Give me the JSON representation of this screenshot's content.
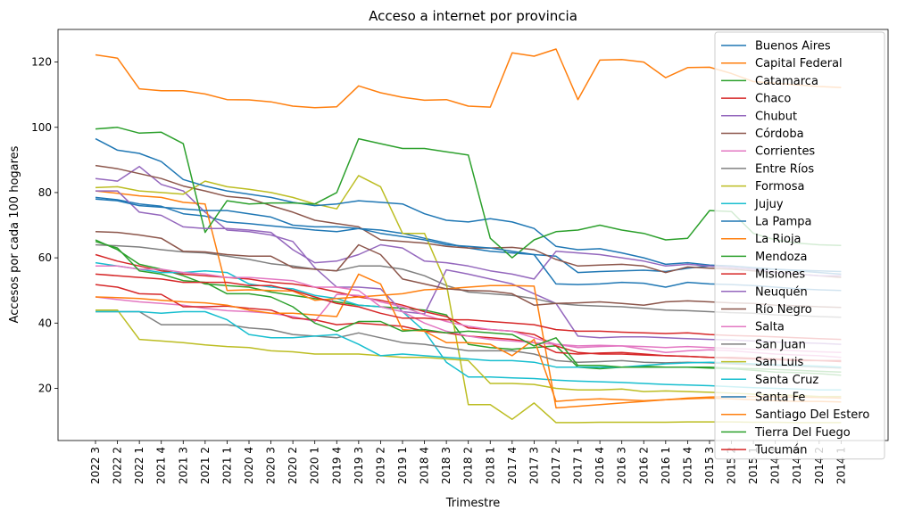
{
  "chart_data": {
    "type": "line",
    "title": "Acceso a internet por provincia",
    "xlabel": "Trimestre",
    "ylabel": "Accesos por cada 100 hogares",
    "ylim": [
      4,
      130
    ],
    "yticks": [
      20,
      40,
      60,
      80,
      100,
      120
    ],
    "grid": false,
    "legend_position": "top-right",
    "x": [
      "2022 3",
      "2022 2",
      "2022 1",
      "2021 4",
      "2021 3",
      "2021 2",
      "2021 1",
      "2020 4",
      "2020 3",
      "2020 2",
      "2020 1",
      "2019 4",
      "2019 3",
      "2019 2",
      "2019 1",
      "2018 4",
      "2018 3",
      "2018 2",
      "2018 1",
      "2017 4",
      "2017 3",
      "2017 2",
      "2017 1",
      "2016 4",
      "2016 3",
      "2016 2",
      "2016 1",
      "2015 4",
      "2015 3",
      "2015 2",
      "2015 1",
      "2014 4",
      "2014 3",
      "2014 2",
      "2014 1"
    ],
    "series": [
      {
        "name": "Buenos Aires",
        "color": "#1f77b4",
        "values": [
          78.5,
          77.8,
          76.5,
          75.8,
          73.5,
          72.8,
          71.0,
          70.5,
          69.8,
          69.2,
          68.5,
          68.0,
          69.0,
          68.5,
          67.5,
          66.0,
          64.5,
          63.0,
          62.0,
          61.5,
          61.0,
          60.5,
          55.5,
          55.8,
          56.0,
          56.2,
          55.8,
          56.8,
          57.5,
          57.0,
          56.5,
          56.5,
          56.2,
          56.0,
          55.8
        ]
      },
      {
        "name": "Capital Federal",
        "color": "#ff7f0e",
        "values": [
          122.2,
          121.2,
          111.8,
          111.2,
          111.2,
          110.2,
          108.5,
          108.4,
          107.8,
          106.5,
          106.0,
          106.3,
          112.7,
          110.6,
          109.2,
          108.3,
          108.5,
          106.5,
          106.2,
          122.8,
          121.8,
          124.0,
          108.5,
          120.6,
          120.8,
          120.0,
          115.2,
          118.3,
          118.4,
          116.5,
          114.0,
          113.5,
          113.0,
          112.5,
          112.2
        ]
      },
      {
        "name": "Catamarca",
        "color": "#2ca02c",
        "values": [
          65.5,
          62.5,
          58.0,
          56.5,
          54.5,
          52.0,
          51.5,
          51.0,
          49.5,
          48.5,
          47.5,
          46.5,
          45.5,
          45.0,
          44.5,
          44.0,
          42.5,
          33.5,
          32.5,
          32.0,
          32.5,
          33.0,
          26.5,
          26.0,
          26.5,
          26.8,
          26.5,
          26.5,
          26.2,
          26.0,
          25.5,
          25.0,
          24.8,
          24.5,
          24.0
        ]
      },
      {
        "name": "Chaco",
        "color": "#d62728",
        "values": [
          61.0,
          59.0,
          57.5,
          56.0,
          55.0,
          54.5,
          54.0,
          53.5,
          52.5,
          52.0,
          51.0,
          49.5,
          48.0,
          47.0,
          45.5,
          43.5,
          42.0,
          38.5,
          38.0,
          37.5,
          36.5,
          33.0,
          31.0,
          30.5,
          30.5,
          30.2,
          30.0,
          29.8,
          29.5,
          29.5,
          29.2,
          29.0,
          28.8,
          28.5,
          28.5
        ]
      },
      {
        "name": "Chubut",
        "color": "#9467bd",
        "values": [
          84.3,
          83.5,
          88.0,
          82.5,
          80.5,
          74.0,
          68.5,
          68.0,
          67.0,
          65.0,
          57.0,
          51.0,
          51.0,
          50.5,
          43.5,
          42.8,
          56.3,
          55.0,
          53.5,
          52.0,
          49.0,
          46.0,
          36.0,
          35.5,
          35.8,
          35.8,
          35.5,
          35.2,
          35.0,
          34.8,
          34.5,
          34.2,
          34.0,
          33.8,
          33.5
        ]
      },
      {
        "name": "Córdoba",
        "color": "#8c564b",
        "values": [
          88.3,
          87.3,
          85.8,
          84.3,
          82.0,
          80.5,
          78.8,
          78.2,
          76.0,
          74.0,
          71.5,
          70.5,
          69.5,
          65.5,
          65.0,
          64.5,
          63.5,
          63.0,
          63.0,
          63.2,
          62.5,
          59.5,
          57.5,
          57.8,
          58.0,
          57.5,
          55.5,
          57.2,
          56.8,
          56.5,
          56.0,
          55.5,
          55.0,
          54.5,
          54.0
        ]
      },
      {
        "name": "Corrientes",
        "color": "#e377c2",
        "values": [
          48.0,
          47.2,
          46.5,
          46.0,
          45.5,
          44.5,
          43.8,
          43.5,
          43.0,
          42.0,
          40.5,
          48.8,
          48.5,
          46.5,
          45.0,
          42.5,
          40.5,
          39.0,
          38.0,
          37.5,
          35.5,
          33.5,
          32.5,
          32.8,
          33.0,
          32.0,
          31.0,
          31.5,
          31.8,
          31.5,
          31.0,
          30.5,
          30.2,
          30.0,
          29.5
        ]
      },
      {
        "name": "Entre Ríos",
        "color": "#7f7f7f",
        "values": [
          64.0,
          63.7,
          63.3,
          62.5,
          61.8,
          61.5,
          60.5,
          59.5,
          58.2,
          57.5,
          56.5,
          56.0,
          57.5,
          57.5,
          56.5,
          54.5,
          51.5,
          49.5,
          49.0,
          48.5,
          47.5,
          46.0,
          45.5,
          45.2,
          45.0,
          44.5,
          44.0,
          43.8,
          43.5,
          43.2,
          43.0,
          42.5,
          42.3,
          42.0,
          41.8
        ]
      },
      {
        "name": "Formosa",
        "color": "#bcbd22",
        "values": [
          81.5,
          81.8,
          80.5,
          80.0,
          79.5,
          83.5,
          81.8,
          81.0,
          80.0,
          78.5,
          76.5,
          75.0,
          85.2,
          81.8,
          67.5,
          67.5,
          52.0,
          15.0,
          15.0,
          10.5,
          15.5,
          9.5,
          9.5,
          9.6,
          9.6,
          9.6,
          9.6,
          9.7,
          9.7,
          9.7,
          9.6,
          9.6,
          9.5,
          9.5,
          9.5
        ]
      },
      {
        "name": "Jujuy",
        "color": "#17becf",
        "values": [
          58.5,
          57.5,
          56.5,
          55.5,
          55.5,
          56.0,
          55.5,
          52.0,
          51.0,
          50.5,
          48.5,
          47.5,
          45.5,
          45.0,
          43.5,
          37.5,
          28.0,
          23.5,
          23.5,
          23.2,
          23.0,
          22.5,
          22.2,
          22.0,
          21.8,
          21.5,
          21.2,
          21.0,
          20.8,
          20.5,
          20.2,
          20.0,
          19.8,
          19.5,
          19.5
        ]
      },
      {
        "name": "La Pampa",
        "color": "#1f77b4",
        "values": [
          96.5,
          93.0,
          92.0,
          89.5,
          84.0,
          82.0,
          80.5,
          79.5,
          78.5,
          77.0,
          76.0,
          76.5,
          77.5,
          77.0,
          76.5,
          73.5,
          71.5,
          71.0,
          72.0,
          71.0,
          69.0,
          63.5,
          62.5,
          62.8,
          61.5,
          60.0,
          58.0,
          58.5,
          57.8,
          57.5,
          57.0,
          56.5,
          56.0,
          55.5,
          55.0
        ]
      },
      {
        "name": "La Rioja",
        "color": "#ff7f0e",
        "values": [
          80.5,
          79.8,
          79.0,
          78.5,
          77.0,
          76.5,
          50.0,
          50.2,
          50.0,
          49.8,
          47.0,
          47.5,
          48.0,
          48.5,
          49.0,
          50.2,
          50.5,
          51.0,
          51.5,
          51.5,
          51.3,
          14.0,
          14.5,
          15.0,
          15.5,
          16.0,
          16.5,
          17.0,
          17.3,
          17.5,
          17.5,
          17.4,
          17.3,
          17.2,
          17.0
        ]
      },
      {
        "name": "Mendoza",
        "color": "#2ca02c",
        "values": [
          99.5,
          100.0,
          98.2,
          98.5,
          95.0,
          67.8,
          77.5,
          76.5,
          76.8,
          76.8,
          76.5,
          80.0,
          96.5,
          95.0,
          93.5,
          93.5,
          92.5,
          91.5,
          66.0,
          60.0,
          65.5,
          68.0,
          68.5,
          70.0,
          68.5,
          67.5,
          65.5,
          66.0,
          74.5,
          74.2,
          67.5,
          65.5,
          64.5,
          64.0,
          63.8
        ]
      },
      {
        "name": "Misiones",
        "color": "#d62728",
        "values": [
          51.8,
          51.0,
          49.0,
          48.8,
          45.0,
          45.0,
          45.2,
          44.5,
          44.0,
          41.5,
          41.0,
          39.5,
          40.0,
          39.5,
          39.0,
          37.5,
          37.0,
          36.0,
          35.5,
          35.0,
          34.0,
          31.0,
          30.5,
          30.8,
          31.0,
          30.5,
          30.0,
          29.8,
          29.5,
          29.2,
          29.0,
          28.8,
          28.5,
          28.5,
          28.2
        ]
      },
      {
        "name": "Neuquén",
        "color": "#9467bd",
        "values": [
          80.5,
          80.5,
          74.0,
          73.0,
          69.5,
          69.0,
          69.0,
          68.5,
          67.8,
          62.5,
          58.5,
          59.0,
          61.0,
          64.0,
          63.0,
          59.0,
          58.5,
          57.5,
          56.0,
          55.0,
          53.5,
          62.0,
          61.5,
          61.0,
          60.0,
          59.0,
          57.5,
          58.0,
          57.5,
          57.0,
          56.5,
          55.5,
          55.0,
          54.5,
          54.5
        ]
      },
      {
        "name": "Río Negro",
        "color": "#8c564b",
        "values": [
          68.0,
          67.8,
          67.0,
          66.0,
          62.0,
          61.8,
          61.0,
          60.5,
          60.5,
          57.0,
          56.5,
          56.0,
          64.0,
          61.0,
          53.5,
          52.0,
          50.5,
          50.0,
          49.8,
          49.0,
          45.5,
          46.0,
          46.2,
          46.5,
          46.0,
          45.5,
          46.5,
          46.8,
          46.5,
          46.2,
          46.0,
          45.5,
          45.3,
          45.0,
          44.8
        ]
      },
      {
        "name": "Salta",
        "color": "#e377c2",
        "values": [
          57.5,
          57.5,
          56.5,
          56.5,
          55.5,
          55.0,
          54.0,
          54.0,
          53.5,
          53.0,
          51.0,
          51.0,
          50.0,
          45.0,
          43.5,
          40.0,
          37.5,
          36.0,
          35.0,
          34.5,
          34.0,
          33.5,
          33.0,
          33.2,
          33.0,
          32.8,
          32.5,
          32.8,
          32.5,
          32.2,
          32.0,
          31.8,
          31.5,
          31.2,
          31.0
        ]
      },
      {
        "name": "San Juan",
        "color": "#7f7f7f",
        "values": [
          43.5,
          43.5,
          43.5,
          39.5,
          39.5,
          39.5,
          39.5,
          38.5,
          38.0,
          36.5,
          36.0,
          35.5,
          37.0,
          35.5,
          34.0,
          33.5,
          32.5,
          31.5,
          31.5,
          31.5,
          30.5,
          28.5,
          28.0,
          28.2,
          28.5,
          28.0,
          27.8,
          28.0,
          27.8,
          27.5,
          27.2,
          27.0,
          26.8,
          26.5,
          26.2
        ]
      },
      {
        "name": "San Luis",
        "color": "#bcbd22",
        "values": [
          44.0,
          44.0,
          35.0,
          34.5,
          34.0,
          33.3,
          32.8,
          32.5,
          31.5,
          31.2,
          30.5,
          30.5,
          30.5,
          30.0,
          29.5,
          29.5,
          29.0,
          28.5,
          21.5,
          21.5,
          21.2,
          20.0,
          19.5,
          19.5,
          19.8,
          19.0,
          19.2,
          19.0,
          18.8,
          18.5,
          18.2,
          18.0,
          17.8,
          17.5,
          17.5
        ]
      },
      {
        "name": "Santa Cruz",
        "color": "#17becf",
        "values": [
          43.5,
          43.5,
          43.5,
          43.0,
          43.5,
          43.5,
          41.0,
          36.5,
          35.5,
          35.5,
          36.0,
          36.5,
          33.5,
          30.0,
          30.5,
          30.0,
          29.5,
          29.0,
          28.5,
          28.5,
          28.0,
          26.5,
          26.5,
          26.5,
          26.5,
          27.0,
          27.5,
          27.8,
          28.0,
          27.8,
          27.5,
          27.2,
          27.0,
          26.8,
          26.5
        ]
      },
      {
        "name": "Santa Fe",
        "color": "#1f77b4",
        "values": [
          78.0,
          77.5,
          76.0,
          75.5,
          75.0,
          74.5,
          74.5,
          73.5,
          72.5,
          70.0,
          69.5,
          69.5,
          69.0,
          67.5,
          66.5,
          65.5,
          64.0,
          63.5,
          63.0,
          62.0,
          61.0,
          52.0,
          51.8,
          52.0,
          52.5,
          52.2,
          51.0,
          52.5,
          52.0,
          51.8,
          51.5,
          51.0,
          50.5,
          50.2,
          50.0
        ]
      },
      {
        "name": "Santiago Del Estero",
        "color": "#ff7f0e",
        "values": [
          48.0,
          47.8,
          47.5,
          47.0,
          46.5,
          46.2,
          45.5,
          44.0,
          43.0,
          43.0,
          42.5,
          42.0,
          55.0,
          52.0,
          38.0,
          37.5,
          34.0,
          34.0,
          33.5,
          30.0,
          35.0,
          16.0,
          16.5,
          16.8,
          16.5,
          16.2,
          16.5,
          16.8,
          17.0,
          16.8,
          16.5,
          16.2,
          16.0,
          16.0,
          15.8
        ]
      },
      {
        "name": "Tierra Del Fuego",
        "color": "#2ca02c",
        "values": [
          65.0,
          63.0,
          56.0,
          55.0,
          53.0,
          52.5,
          49.0,
          49.0,
          48.0,
          45.0,
          40.0,
          37.5,
          40.5,
          40.5,
          37.5,
          38.0,
          37.0,
          37.5,
          37.0,
          36.5,
          33.0,
          35.5,
          27.0,
          27.0,
          26.5,
          26.5,
          26.5,
          26.5,
          26.5,
          26.2,
          26.0,
          25.8,
          25.5,
          25.2,
          25.0
        ]
      },
      {
        "name": "Tucumán",
        "color": "#d62728",
        "values": [
          55.0,
          54.5,
          54.0,
          53.5,
          52.5,
          52.5,
          52.5,
          51.5,
          51.5,
          50.0,
          48.0,
          46.0,
          45.0,
          43.0,
          41.5,
          41.5,
          41.0,
          41.0,
          40.5,
          40.0,
          39.5,
          38.0,
          37.5,
          37.5,
          37.2,
          37.0,
          36.8,
          37.0,
          36.5,
          36.2,
          36.0,
          35.8,
          35.5,
          35.2,
          35.0
        ]
      }
    ]
  }
}
